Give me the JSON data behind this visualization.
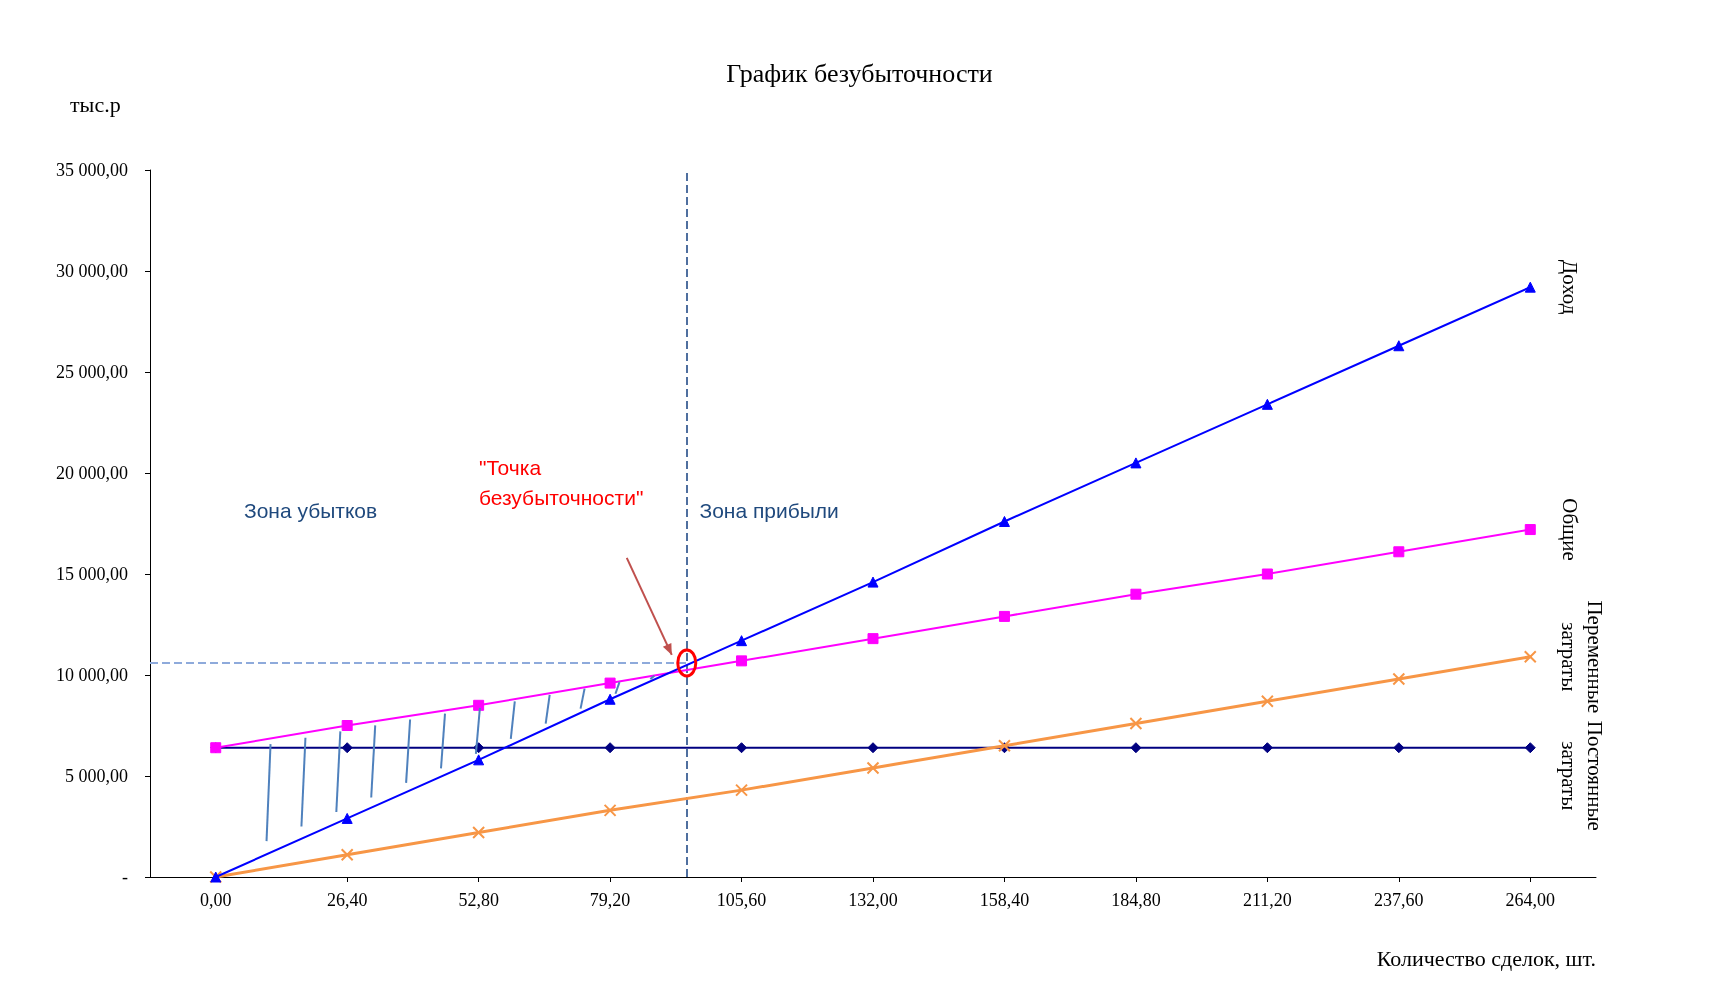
{
  "chart_data": {
    "type": "line",
    "title": "График безубыточности",
    "ylabel": "тыс.р",
    "xlabel": "Количество сделок, шт.",
    "x": [
      0,
      26.4,
      52.8,
      79.2,
      105.6,
      132,
      158.4,
      184.8,
      211.2,
      237.6,
      264
    ],
    "series": [
      {
        "name": "Доход",
        "color": "#0000ff",
        "marker": "triangle",
        "values": [
          0,
          2900,
          5800,
          8800,
          11700,
          14600,
          17600,
          20500,
          23400,
          26300,
          29200
        ]
      },
      {
        "name": "Общие",
        "color": "#ff00ff",
        "marker": "square",
        "values": [
          6400,
          7500,
          8500,
          9600,
          10700,
          11800,
          12900,
          14000,
          15000,
          16100,
          17200
        ]
      },
      {
        "name": "Переменные затраты",
        "color": "#f79646",
        "marker": "cross",
        "values": [
          0,
          1100,
          2200,
          3300,
          4300,
          5400,
          6500,
          7600,
          8700,
          9800,
          10900
        ]
      },
      {
        "name": "Постоянные затраты",
        "color": "#000080",
        "marker": "diamond",
        "values": [
          6400,
          6400,
          6400,
          6400,
          6400,
          6400,
          6400,
          6400,
          6400,
          6400,
          6400
        ]
      }
    ],
    "xlim": [
      -13.2,
      277.2
    ],
    "xticks": [
      {
        "value": 0,
        "label": "0,00"
      },
      {
        "value": 26.4,
        "label": "26,40"
      },
      {
        "value": 52.8,
        "label": "52,80"
      },
      {
        "value": 79.2,
        "label": "79,20"
      },
      {
        "value": 105.6,
        "label": "105,60"
      },
      {
        "value": 132,
        "label": "132,00"
      },
      {
        "value": 158.4,
        "label": "158,40"
      },
      {
        "value": 184.8,
        "label": "184,80"
      },
      {
        "value": 211.2,
        "label": "211,20"
      },
      {
        "value": 237.6,
        "label": "237,60"
      },
      {
        "value": 264,
        "label": "264,00"
      }
    ],
    "ylim": [
      0,
      35000
    ],
    "yticks": [
      {
        "value": 0,
        "label": "-"
      },
      {
        "value": 5000,
        "label": "5 000,00"
      },
      {
        "value": 10000,
        "label": "10 000,00"
      },
      {
        "value": 15000,
        "label": "15 000,00"
      },
      {
        "value": 20000,
        "label": "20 000,00"
      },
      {
        "value": 25000,
        "label": "25 000,00"
      },
      {
        "value": 30000,
        "label": "30 000,00"
      },
      {
        "value": 35000,
        "label": "35 000,00"
      }
    ],
    "ref_lines": [
      {
        "axis": "x",
        "value": 94.6,
        "color": "#4f6f9f",
        "line_style": "dashed"
      },
      {
        "axis": "y",
        "value": 10600,
        "color": "#8eaadb",
        "line_style": "dashed"
      }
    ],
    "annotations": [
      "Зона убытков",
      "\"Точка безубыточности\"",
      "Зона прибыли"
    ],
    "grid": false,
    "legend": false
  }
}
